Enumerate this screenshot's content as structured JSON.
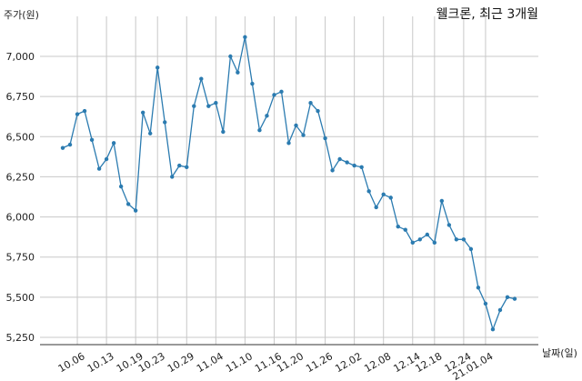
{
  "chart_data": {
    "type": "line",
    "title": "웰크론, 최근 3개월",
    "xlabel": "날짜(일)",
    "ylabel": "주가(원)",
    "ylim": [
      5200,
      7200
    ],
    "yticks": [
      5250,
      5500,
      5750,
      6000,
      6250,
      6500,
      6750,
      7000
    ],
    "ytick_labels": [
      "5,250",
      "5,500",
      "5,750",
      "6,000",
      "6,250",
      "6,500",
      "6,750",
      "7,000"
    ],
    "xtick_labels": [
      "10.06",
      "10.13",
      "10.19",
      "10.23",
      "10.29",
      "11.04",
      "11.10",
      "11.16",
      "11.20",
      "11.26",
      "12.02",
      "12.08",
      "12.14",
      "12.18",
      "12.24",
      "21.01.04"
    ],
    "xtick_indices": [
      2,
      6,
      10,
      13,
      17,
      21,
      25,
      29,
      32,
      36,
      40,
      44,
      48,
      51,
      55,
      58
    ],
    "grid": true,
    "color": "#2b7bb0",
    "series": [
      {
        "values": [
          6430,
          6450,
          6640,
          6660,
          6480,
          6300,
          6360,
          6460,
          6190,
          6080,
          6040,
          6650,
          6520,
          6930,
          6590,
          6250,
          6320,
          6310,
          6690,
          6860,
          6690,
          6710,
          6530,
          7000,
          6900,
          7120,
          6830,
          6540,
          6630,
          6760,
          6780,
          6460,
          6570,
          6510,
          6710,
          6660,
          6490,
          6290,
          6360,
          6340,
          6320,
          6310,
          6160,
          6060,
          6140,
          6120,
          5940,
          5920,
          5840,
          5860,
          5890,
          5840,
          6100,
          5950,
          5860,
          5860,
          5800,
          5560,
          5460,
          5300,
          5420,
          5500,
          5490
        ]
      }
    ]
  }
}
